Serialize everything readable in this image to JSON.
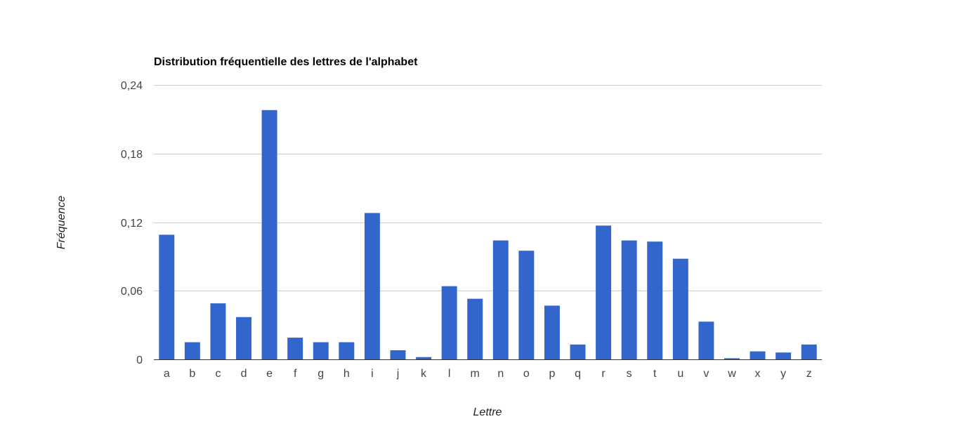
{
  "chart_data": {
    "type": "bar",
    "title": "Distribution fréquentielle des lettres de l'alphabet",
    "xlabel": "Lettre",
    "ylabel": "Fréquence",
    "ylim": [
      0,
      0.24
    ],
    "yticks": [
      0,
      0.06,
      0.12,
      0.18,
      0.24
    ],
    "ytick_labels": [
      "0",
      "0,06",
      "0,12",
      "0,18",
      "0,24"
    ],
    "grid": true,
    "legend": "none",
    "colors": {
      "bar": "#3366cc",
      "grid": "#cccccc",
      "baseline": "#333333"
    },
    "categories": [
      "a",
      "b",
      "c",
      "d",
      "e",
      "f",
      "g",
      "h",
      "i",
      "j",
      "k",
      "l",
      "m",
      "n",
      "o",
      "p",
      "q",
      "r",
      "s",
      "t",
      "u",
      "v",
      "w",
      "x",
      "y",
      "z"
    ],
    "values": [
      0.109,
      0.015,
      0.049,
      0.037,
      0.218,
      0.019,
      0.015,
      0.015,
      0.128,
      0.008,
      0.002,
      0.064,
      0.053,
      0.104,
      0.095,
      0.047,
      0.013,
      0.117,
      0.104,
      0.103,
      0.088,
      0.033,
      0.001,
      0.007,
      0.006,
      0.013
    ]
  }
}
